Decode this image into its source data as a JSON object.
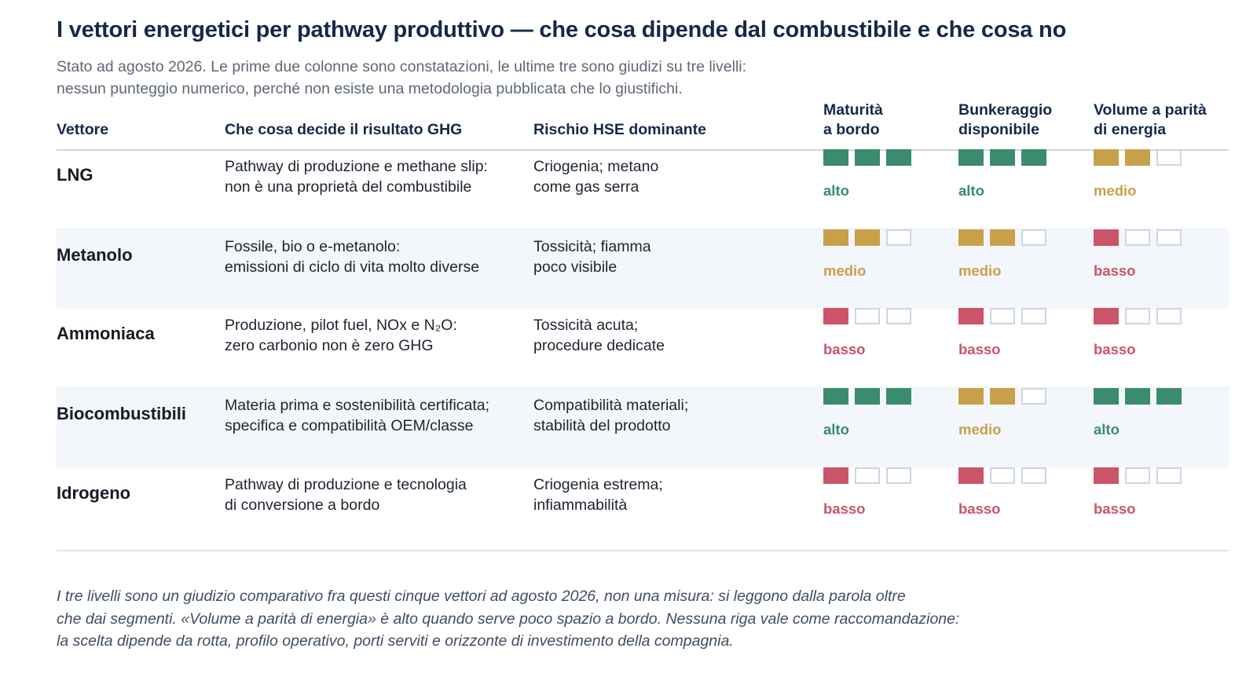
{
  "title": "I vettori energetici per pathway produttivo — che cosa dipende dal combustibile e che cosa no",
  "subtitle_lines": [
    "Stato ad agosto 2026. Le prime due colonne sono constatazioni, le ultime tre sono giudizi su tre livelli:",
    "nessun punteggio numerico, perché non esiste una metodologia pubblicata che lo giustifichi."
  ],
  "columns": {
    "vettore": "Vettore",
    "ghg": "Che cosa decide il risultato GHG",
    "hse": "Rischio HSE dominante",
    "maturita": [
      "Maturità",
      "a bordo"
    ],
    "bunkeraggio": [
      "Bunkeraggio",
      "disponibile"
    ],
    "volume": [
      "Volume a parità",
      "di energia"
    ]
  },
  "levels": {
    "alto": {
      "label": "alto",
      "filled": 3,
      "color": "#3a8c6c"
    },
    "medio": {
      "label": "medio",
      "filled": 2,
      "color": "#c8a04a"
    },
    "basso": {
      "label": "basso",
      "filled": 1,
      "color": "#cc5468"
    }
  },
  "rows": [
    {
      "name": "LNG",
      "ghg": [
        "Pathway di produzione e methane slip:",
        "non è una proprietà del combustibile"
      ],
      "hse": [
        "Criogenia; metano",
        "come gas serra"
      ],
      "maturita": "alto",
      "bunkeraggio": "alto",
      "volume": "medio"
    },
    {
      "name": "Metanolo",
      "ghg": [
        "Fossile, bio o e-metanolo:",
        "emissioni di ciclo di vita molto diverse"
      ],
      "hse": [
        "Tossicità; fiamma",
        "poco visibile"
      ],
      "maturita": "medio",
      "bunkeraggio": "medio",
      "volume": "basso"
    },
    {
      "name": "Ammoniaca",
      "ghg": [
        "Produzione, pilot fuel, NOx e N₂O:",
        "zero carbonio non è zero GHG"
      ],
      "hse": [
        "Tossicità acuta;",
        "procedure dedicate"
      ],
      "maturita": "basso",
      "bunkeraggio": "basso",
      "volume": "basso"
    },
    {
      "name": "Biocombustibili",
      "ghg": [
        "Materia prima e sostenibilità certificata;",
        "specifica e compatibilità OEM/classe"
      ],
      "hse": [
        "Compatibilità materiali;",
        "stabilità del prodotto"
      ],
      "maturita": "alto",
      "bunkeraggio": "medio",
      "volume": "alto"
    },
    {
      "name": "Idrogeno",
      "ghg": [
        "Pathway di produzione e tecnologia",
        "di conversione a bordo"
      ],
      "hse": [
        "Criogenia estrema;",
        "infiammabilità"
      ],
      "maturita": "basso",
      "bunkeraggio": "basso",
      "volume": "basso"
    }
  ],
  "footnote_lines": [
    "I tre livelli sono un giudizio comparativo fra questi cinque vettori ad agosto 2026, non una misura: si leggono dalla parola oltre",
    "che dai segmenti. «Volume a parità di energia» è alto quando serve poco spazio a bordo. Nessuna riga vale come raccomandazione:",
    "la scelta dipende da rotta, profilo operativo, porti serviti e orizzonte di investimento della compagnia."
  ]
}
